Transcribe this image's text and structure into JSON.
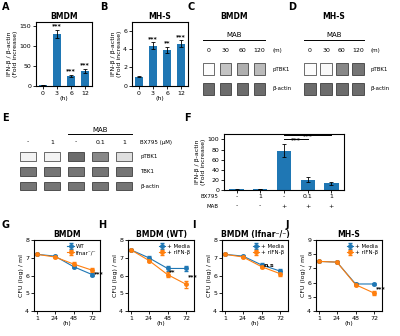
{
  "chart_data": [
    {
      "type": "bar",
      "panel_label": "A",
      "title": "BMDM",
      "xlabel": "(h)",
      "ylabel": "IFN-β / β-actin\n(Fold increase)",
      "categories": [
        "0",
        "3",
        "6",
        "12"
      ],
      "values": [
        1,
        130,
        25,
        38
      ],
      "errors": [
        0.5,
        10,
        3,
        5
      ],
      "significance": [
        null,
        "***",
        "***",
        "***"
      ],
      "ylim": [
        0,
        160
      ],
      "yticks": [
        0,
        50,
        100,
        150
      ]
    },
    {
      "type": "bar",
      "panel_label": "B",
      "title": "MH-S",
      "xlabel": "(h)",
      "ylabel": "IFN-β / β-actin\n(Fold increase)",
      "categories": [
        "0",
        "3",
        "6",
        "12"
      ],
      "values": [
        1,
        4.4,
        3.9,
        4.6
      ],
      "errors": [
        0.1,
        0.35,
        0.35,
        0.4
      ],
      "significance": [
        null,
        "***",
        "**",
        "***"
      ],
      "ylim": [
        0,
        7
      ],
      "yticks": [
        0,
        2,
        4,
        6
      ]
    },
    {
      "type": "blot",
      "panel_label": "C",
      "title": "BMDM",
      "treatment": {
        "text": "MAB",
        "lanes": [
          0,
          1,
          2,
          3
        ]
      },
      "lanes": [
        "0",
        "30",
        "60",
        "120"
      ],
      "lane_unit": "(m)",
      "rows": [
        "pTBK1",
        "β-actin"
      ],
      "cells": [
        [
          0.03,
          0.35,
          0.42,
          0.38
        ],
        [
          0.65,
          0.65,
          0.65,
          0.65
        ]
      ],
      "cell_range": [
        0,
        1
      ]
    },
    {
      "type": "blot",
      "panel_label": "D",
      "title": "MH-S",
      "treatment": {
        "text": "MAB",
        "lanes": [
          0,
          1,
          2,
          3
        ]
      },
      "lanes": [
        "0",
        "30",
        "60",
        "120"
      ],
      "lane_unit": "(m)",
      "rows": [
        "pTBK1",
        "β-actin"
      ],
      "cells": [
        [
          0.03,
          0.05,
          0.55,
          0.62
        ],
        [
          0.65,
          0.65,
          0.65,
          0.65
        ]
      ],
      "cell_range": [
        0,
        1
      ]
    },
    {
      "type": "blot",
      "panel_label": "E",
      "treatment": {
        "text": "MAB",
        "lanes": [
          2,
          3,
          4
        ]
      },
      "lanes": [
        "-",
        "1",
        "-",
        "0.1",
        "1"
      ],
      "lane_unit": "BX795 (μM)",
      "rows": [
        "pTBK1",
        "TBK1",
        "β-actin"
      ],
      "cells": [
        [
          0.1,
          0.1,
          0.65,
          0.55,
          0.22
        ],
        [
          0.62,
          0.62,
          0.62,
          0.62,
          0.62
        ],
        [
          0.62,
          0.62,
          0.62,
          0.62,
          0.62
        ]
      ],
      "cell_range": [
        0,
        1
      ]
    },
    {
      "type": "bar",
      "panel_label": "F",
      "ylabel": "IFN-β / β-actin\n(Fold increase)",
      "category_rows": [
        {
          "name": "BX795",
          "labels": [
            "-",
            "1",
            "-",
            "0.1",
            "1"
          ]
        },
        {
          "name": "MAB",
          "labels": [
            "-",
            "-",
            "+",
            "+",
            "+"
          ]
        }
      ],
      "values": [
        1,
        2,
        78,
        20,
        13
      ],
      "errors": [
        0.5,
        0.5,
        12,
        5,
        3
      ],
      "brackets": [
        {
          "from": 2,
          "to": 3,
          "y": 100,
          "text": "***"
        },
        {
          "from": 2,
          "to": 4,
          "y": 108,
          "text": "***"
        }
      ],
      "ylim": [
        0,
        110
      ],
      "yticks": [
        0,
        20,
        40,
        60,
        80,
        100
      ]
    },
    {
      "type": "line",
      "panel_label": "G",
      "title": "BMDM",
      "xlabel": "(h)",
      "ylabel": "CFU (log) / ml",
      "x": [
        1,
        24,
        48,
        72
      ],
      "series": [
        {
          "name": "WT",
          "values": [
            7.2,
            7.1,
            6.5,
            6.05
          ],
          "errors": [
            0.05,
            0.05,
            0.1,
            0.1
          ],
          "marker": "o"
        },
        {
          "name": "Ifnar⁻/⁻",
          "values": [
            7.2,
            7.05,
            6.65,
            6.3
          ],
          "errors": [
            0.05,
            0.05,
            0.1,
            0.1
          ],
          "marker": "o"
        }
      ],
      "annotations": [
        {
          "x": 74,
          "y": 6.125,
          "text": "***"
        }
      ],
      "xlim": [
        -3,
        82
      ],
      "xticks": [
        1,
        24,
        48,
        72
      ],
      "ylim": [
        4,
        8
      ],
      "yticks": [
        4,
        5,
        6,
        7,
        8
      ],
      "legend": "upper right"
    },
    {
      "type": "line",
      "panel_label": "H",
      "title": "BMDM (WT)",
      "xlabel": "(h)",
      "ylabel": "CFU (log) / ml",
      "x": [
        1,
        24,
        48,
        72
      ],
      "series": [
        {
          "name": "+ Media",
          "values": [
            7.45,
            7.0,
            6.4,
            6.4
          ],
          "errors": [
            0.05,
            0.1,
            0.15,
            0.15
          ],
          "marker": "o"
        },
        {
          "name": "+ rIFN-β",
          "values": [
            7.45,
            6.85,
            6.05,
            5.5
          ],
          "errors": [
            0.05,
            0.1,
            0.15,
            0.2
          ],
          "marker": "o"
        }
      ],
      "annotations": [
        {
          "x": 50,
          "y": 6.225,
          "text": "**"
        },
        {
          "x": 74,
          "y": 5.95,
          "text": "***"
        }
      ],
      "xlim": [
        -3,
        82
      ],
      "xticks": [
        1,
        24,
        48,
        72
      ],
      "ylim": [
        4,
        8
      ],
      "yticks": [
        4,
        5,
        6,
        7,
        8
      ],
      "legend": "upper right"
    },
    {
      "type": "line",
      "panel_label": "I",
      "title": "BMDM (Ifnar⁻/⁻)",
      "xlabel": "(h)",
      "ylabel": "CFU (log) / ml",
      "x": [
        1,
        24,
        48,
        72
      ],
      "series": [
        {
          "name": "+ Media",
          "values": [
            7.2,
            7.1,
            6.6,
            6.25
          ],
          "errors": [
            0.05,
            0.05,
            0.1,
            0.1
          ],
          "marker": "o"
        },
        {
          "name": "+ rIFN-β",
          "values": [
            7.2,
            7.05,
            6.5,
            6.1
          ],
          "errors": [
            0.05,
            0.05,
            0.1,
            0.15
          ],
          "marker": "o"
        }
      ],
      "annotations": [
        {
          "x": 50,
          "y": 6.55,
          "text": "n.s"
        }
      ],
      "xlim": [
        -3,
        82
      ],
      "xticks": [
        1,
        24,
        48,
        72
      ],
      "ylim": [
        4,
        8
      ],
      "yticks": [
        4,
        5,
        6,
        7,
        8
      ],
      "legend": "upper right"
    },
    {
      "type": "line",
      "panel_label": "J",
      "title": "MH-S",
      "xlabel": "(h)",
      "ylabel": "CFU (log) / ml",
      "x": [
        1,
        24,
        48,
        72
      ],
      "series": [
        {
          "name": "+ Media",
          "values": [
            7.5,
            7.45,
            5.9,
            5.9
          ],
          "errors": [
            0.05,
            0.05,
            0.1,
            0.1
          ],
          "marker": "o"
        },
        {
          "name": "+ rIFN-β",
          "values": [
            7.5,
            7.45,
            5.85,
            5.25
          ],
          "errors": [
            0.05,
            0.05,
            0.1,
            0.15
          ],
          "marker": "o"
        }
      ],
      "annotations": [
        {
          "x": 74,
          "y": 5.575,
          "text": "***"
        }
      ],
      "xlim": [
        -3,
        82
      ],
      "xticks": [
        1,
        24,
        48,
        72
      ],
      "ylim": [
        4,
        9
      ],
      "yticks": [
        4,
        5,
        6,
        7,
        8,
        9
      ],
      "legend": "upper right"
    }
  ]
}
